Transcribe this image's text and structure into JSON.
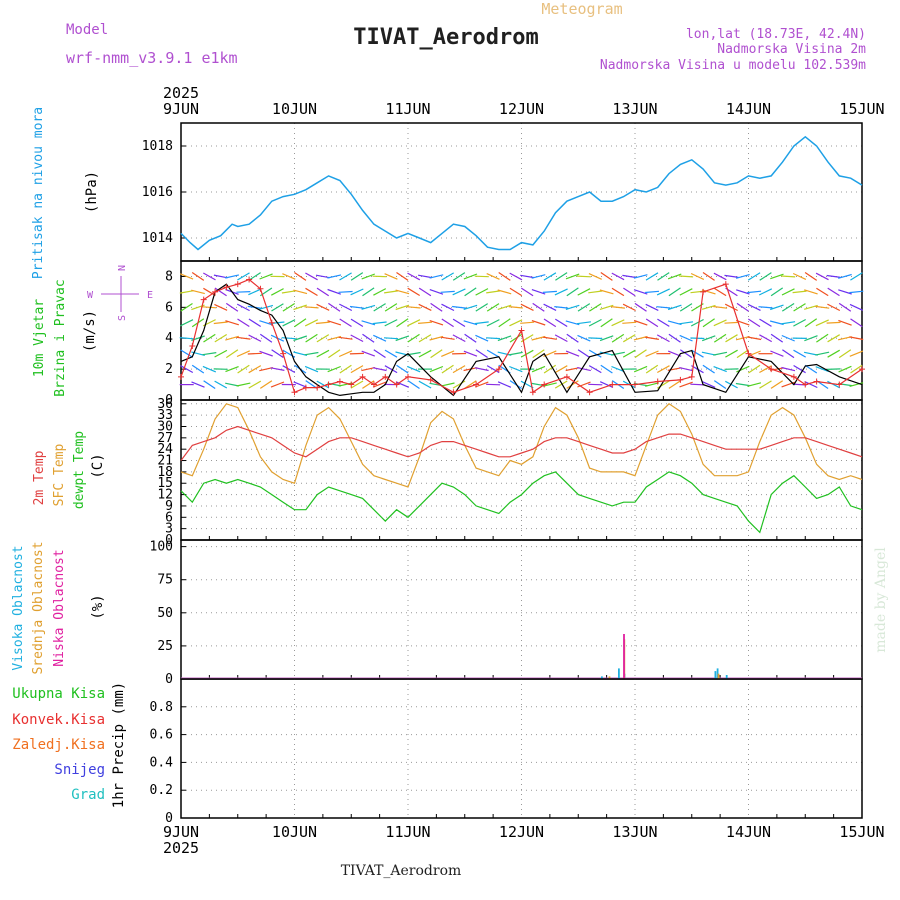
{
  "header": {
    "meteogram_label": "Meteogram",
    "title": "TIVAT_Aerodrom",
    "model_label": "Model",
    "model_name": "wrf-nmm_v3.9.1  e1km",
    "lonlat": "lon,lat (18.73E, 42.4N)",
    "elevation": "Nadmorska Visina 2m",
    "model_elevation": "Nadmorska Visina u modelu 102.539m"
  },
  "footer": {
    "station": "TIVAT_Aerodrom",
    "watermark": "made by Angel"
  },
  "colors": {
    "pressure": "#1ea0e6",
    "wind_speed": "#000000",
    "wind_gust": "#e83030",
    "temp_2m": "#e04040",
    "sfc_temp": "#e0a030",
    "dewpoint": "#20c020",
    "cloud_high": "#20b0e0",
    "cloud_mid": "#e0a030",
    "cloud_low": "#e020a0",
    "precip_total": "#20c020",
    "precip_conv": "#e83030",
    "precip_frz": "#f07020",
    "snow": "#4040e0",
    "hail": "#20c0c0",
    "label_purple": "#b050d0"
  },
  "chart_data": [
    {
      "type": "line",
      "panel": "pressure",
      "title": "",
      "ylabel": "(hPa)",
      "side_labels": [
        "Pritisak na nivou mora"
      ],
      "ylim": [
        1013,
        1019
      ],
      "yticks": [
        1014,
        1016,
        1018
      ],
      "x_axis": {
        "year": "2025",
        "ticks": [
          "9JUN",
          "10JUN",
          "11JUN",
          "12JUN",
          "13JUN",
          "14JUN",
          "15JUN"
        ],
        "range_days": [
          0,
          6
        ]
      },
      "grid": true,
      "series": [
        {
          "name": "Pritisak na nivou mora",
          "x": [
            0,
            0.08,
            0.15,
            0.25,
            0.35,
            0.45,
            0.5,
            0.6,
            0.7,
            0.8,
            0.9,
            1.0,
            1.1,
            1.2,
            1.3,
            1.4,
            1.5,
            1.6,
            1.7,
            1.8,
            1.9,
            2.0,
            2.1,
            2.2,
            2.3,
            2.4,
            2.5,
            2.6,
            2.7,
            2.8,
            2.9,
            3.0,
            3.1,
            3.2,
            3.3,
            3.4,
            3.5,
            3.6,
            3.7,
            3.8,
            3.9,
            4.0,
            4.1,
            4.2,
            4.3,
            4.4,
            4.5,
            4.6,
            4.7,
            4.8,
            4.9,
            5.0,
            5.1,
            5.2,
            5.3,
            5.4,
            5.5,
            5.6,
            5.7,
            5.8,
            5.9,
            6.0
          ],
          "values": [
            1014.2,
            1013.8,
            1013.5,
            1013.9,
            1014.1,
            1014.6,
            1014.5,
            1014.6,
            1015.0,
            1015.6,
            1015.8,
            1015.9,
            1016.1,
            1016.4,
            1016.7,
            1016.5,
            1015.9,
            1015.2,
            1014.6,
            1014.3,
            1014.0,
            1014.2,
            1014.0,
            1013.8,
            1014.2,
            1014.6,
            1014.5,
            1014.1,
            1013.6,
            1013.5,
            1013.5,
            1013.8,
            1013.7,
            1014.3,
            1015.1,
            1015.6,
            1015.8,
            1016.0,
            1015.6,
            1015.6,
            1015.8,
            1016.1,
            1016.0,
            1016.2,
            1016.8,
            1017.2,
            1017.4,
            1017.0,
            1016.4,
            1016.3,
            1016.4,
            1016.7,
            1016.6,
            1016.7,
            1017.3,
            1018.0,
            1018.4,
            1018.0,
            1017.3,
            1016.7,
            1016.6,
            1016.3
          ]
        }
      ]
    },
    {
      "type": "line",
      "panel": "wind",
      "title": "",
      "ylabel": "(m/s)",
      "side_labels": [
        "10m Vjetar",
        "Brzina i Pravac"
      ],
      "compass": [
        "N",
        "S",
        "E",
        "W"
      ],
      "ylim": [
        0,
        9
      ],
      "yticks": [
        0,
        2,
        4,
        6,
        8
      ],
      "grid": true,
      "barb_rows_ms": [
        1,
        2,
        3,
        4,
        5,
        6,
        7,
        8
      ],
      "series": [
        {
          "name": "10m wind speed",
          "x": [
            0,
            0.1,
            0.2,
            0.3,
            0.4,
            0.5,
            0.6,
            0.7,
            0.8,
            0.9,
            1.0,
            1.1,
            1.2,
            1.3,
            1.4,
            1.5,
            1.6,
            1.7,
            1.8,
            1.9,
            2.0,
            2.2,
            2.4,
            2.6,
            2.8,
            3.0,
            3.1,
            3.2,
            3.4,
            3.6,
            3.8,
            4.0,
            4.2,
            4.4,
            4.5,
            4.6,
            4.8,
            5.0,
            5.2,
            5.4,
            5.5,
            5.6,
            5.8,
            6.0
          ],
          "values": [
            2.5,
            2.8,
            4.5,
            7.0,
            7.5,
            6.5,
            6.2,
            5.8,
            5.5,
            4.5,
            2.5,
            1.5,
            1.0,
            0.5,
            0.3,
            0.4,
            0.5,
            0.5,
            1.0,
            2.5,
            3.0,
            1.5,
            0.3,
            2.5,
            2.8,
            0.5,
            2.5,
            3.0,
            0.5,
            2.8,
            3.2,
            0.5,
            0.6,
            3.0,
            3.2,
            1.0,
            0.5,
            2.8,
            2.5,
            1.0,
            2.2,
            2.3,
            1.5,
            1.0
          ]
        },
        {
          "name": "10m wind gust",
          "x": [
            0,
            0.1,
            0.2,
            0.3,
            0.4,
            0.5,
            0.6,
            0.7,
            0.8,
            0.9,
            1.0,
            1.1,
            1.2,
            1.3,
            1.4,
            1.5,
            1.6,
            1.7,
            1.8,
            1.9,
            2.0,
            2.2,
            2.4,
            2.6,
            2.8,
            3.0,
            3.1,
            3.2,
            3.4,
            3.6,
            3.8,
            4.0,
            4.2,
            4.4,
            4.5,
            4.6,
            4.8,
            5.0,
            5.2,
            5.4,
            5.5,
            5.6,
            5.8,
            6.0
          ],
          "values": [
            1.5,
            3.5,
            6.5,
            7.0,
            7.3,
            7.5,
            7.8,
            7.2,
            5.0,
            3.0,
            0.5,
            0.8,
            0.8,
            1.0,
            1.2,
            1.0,
            1.5,
            1.0,
            1.5,
            1.0,
            1.5,
            1.3,
            0.5,
            1.0,
            2.0,
            4.5,
            0.5,
            1.0,
            1.5,
            0.5,
            1.0,
            1.0,
            1.2,
            1.3,
            1.5,
            7.0,
            7.5,
            3.0,
            2.0,
            1.5,
            1.0,
            1.2,
            1.0,
            2.0
          ]
        }
      ]
    },
    {
      "type": "line",
      "panel": "temperature",
      "title": "",
      "ylabel": "(C)",
      "side_labels": [
        "2m Temp",
        "SFC Temp",
        "dewpt Temp"
      ],
      "ylim": [
        0,
        37
      ],
      "yticks": [
        0,
        3,
        6,
        9,
        12,
        15,
        18,
        21,
        24,
        27,
        30,
        33,
        36
      ],
      "grid": true,
      "series": [
        {
          "name": "2m Temp",
          "x": [
            0,
            0.1,
            0.2,
            0.3,
            0.4,
            0.5,
            0.6,
            0.7,
            0.8,
            0.9,
            1.0,
            1.1,
            1.2,
            1.3,
            1.4,
            1.5,
            1.6,
            1.7,
            1.8,
            1.9,
            2.0,
            2.1,
            2.2,
            2.3,
            2.4,
            2.5,
            2.6,
            2.7,
            2.8,
            2.9,
            3.0,
            3.1,
            3.2,
            3.3,
            3.4,
            3.5,
            3.6,
            3.7,
            3.8,
            3.9,
            4.0,
            4.1,
            4.2,
            4.3,
            4.4,
            4.5,
            4.6,
            4.7,
            4.8,
            4.9,
            5.0,
            5.1,
            5.2,
            5.3,
            5.4,
            5.5,
            5.6,
            5.7,
            5.8,
            5.9,
            6.0
          ],
          "values": [
            21,
            25,
            26,
            27,
            29,
            30,
            29,
            28,
            27,
            25,
            23,
            22,
            24,
            26,
            27,
            27,
            26,
            25,
            24,
            23,
            22,
            23,
            25,
            26,
            26,
            25,
            24,
            23,
            22,
            22,
            23,
            24,
            26,
            27,
            27,
            26,
            25,
            24,
            23,
            23,
            24,
            26,
            27,
            28,
            28,
            27,
            26,
            25,
            24,
            24,
            24,
            24,
            25,
            26,
            27,
            27,
            26,
            25,
            24,
            23,
            22
          ]
        },
        {
          "name": "SFC Temp",
          "x": [
            0,
            0.1,
            0.2,
            0.3,
            0.4,
            0.5,
            0.6,
            0.7,
            0.8,
            0.9,
            1.0,
            1.1,
            1.2,
            1.3,
            1.4,
            1.5,
            1.6,
            1.7,
            1.8,
            1.9,
            2.0,
            2.1,
            2.2,
            2.3,
            2.4,
            2.5,
            2.6,
            2.7,
            2.8,
            2.9,
            3.0,
            3.1,
            3.2,
            3.3,
            3.4,
            3.5,
            3.6,
            3.7,
            3.8,
            3.9,
            4.0,
            4.1,
            4.2,
            4.3,
            4.4,
            4.5,
            4.6,
            4.7,
            4.8,
            4.9,
            5.0,
            5.1,
            5.2,
            5.3,
            5.4,
            5.5,
            5.6,
            5.7,
            5.8,
            5.9,
            6.0
          ],
          "values": [
            18,
            17,
            24,
            32,
            36,
            35,
            29,
            22,
            18,
            16,
            15,
            25,
            33,
            35,
            32,
            26,
            20,
            17,
            16,
            15,
            14,
            22,
            31,
            34,
            32,
            25,
            19,
            18,
            17,
            21,
            20,
            22,
            30,
            35,
            33,
            27,
            19,
            18,
            18,
            18,
            17,
            25,
            33,
            36,
            34,
            28,
            20,
            17,
            17,
            17,
            18,
            26,
            33,
            35,
            33,
            27,
            20,
            17,
            16,
            17,
            16
          ]
        },
        {
          "name": "dewpt Temp",
          "x": [
            0,
            0.1,
            0.2,
            0.3,
            0.4,
            0.5,
            0.6,
            0.7,
            0.8,
            0.9,
            1.0,
            1.1,
            1.2,
            1.3,
            1.4,
            1.5,
            1.6,
            1.7,
            1.8,
            1.9,
            2.0,
            2.1,
            2.2,
            2.3,
            2.4,
            2.5,
            2.6,
            2.7,
            2.8,
            2.9,
            3.0,
            3.1,
            3.2,
            3.3,
            3.4,
            3.5,
            3.6,
            3.7,
            3.8,
            3.9,
            4.0,
            4.1,
            4.2,
            4.3,
            4.4,
            4.5,
            4.6,
            4.7,
            4.8,
            4.9,
            5.0,
            5.1,
            5.2,
            5.3,
            5.4,
            5.5,
            5.6,
            5.7,
            5.8,
            5.9,
            6.0
          ],
          "values": [
            13,
            10,
            15,
            16,
            15,
            16,
            15,
            14,
            12,
            10,
            8,
            8,
            12,
            14,
            13,
            12,
            11,
            8,
            5,
            8,
            6,
            9,
            12,
            15,
            14,
            12,
            9,
            8,
            7,
            10,
            12,
            15,
            17,
            18,
            15,
            12,
            11,
            10,
            9,
            10,
            10,
            14,
            16,
            18,
            17,
            15,
            12,
            11,
            10,
            9,
            5,
            2,
            12,
            15,
            17,
            14,
            11,
            12,
            14,
            9,
            8
          ]
        }
      ]
    },
    {
      "type": "bar",
      "panel": "cloud",
      "title": "",
      "ylabel": "(%)",
      "side_labels": [
        "Visoka Oblacnost",
        "Srednja Oblacnost",
        "Niska Oblacnost"
      ],
      "ylim": [
        0,
        105
      ],
      "yticks": [
        0,
        25,
        50,
        75,
        100
      ],
      "grid": true,
      "series": [
        {
          "name": "Visoka Oblacnost",
          "x": [
            3.7,
            3.85,
            3.9,
            4.7,
            4.72,
            4.8
          ],
          "values": [
            2,
            8,
            4,
            6,
            8,
            3
          ]
        },
        {
          "name": "Srednja Oblacnost",
          "x": [
            3.75,
            3.88,
            4.71
          ],
          "values": [
            2,
            30,
            4
          ]
        },
        {
          "name": "Niska Oblacnost",
          "x": [
            3.86
          ],
          "values": [
            34
          ]
        }
      ]
    },
    {
      "type": "bar",
      "panel": "precipitation",
      "title": "",
      "ylabel": "1hr Precip (mm)",
      "side_labels": [
        "Ukupna Kisa",
        "Konvek.Kisa",
        "Zaledj.Kisa",
        "Snijeg",
        "Grad"
      ],
      "ylim": [
        0,
        1.0
      ],
      "yticks": [
        0,
        0.2,
        0.4,
        0.6,
        0.8
      ],
      "x_axis": {
        "year": "2025",
        "ticks": [
          "9JUN",
          "10JUN",
          "11JUN",
          "12JUN",
          "13JUN",
          "14JUN",
          "15JUN"
        ]
      },
      "grid": true,
      "series": []
    }
  ]
}
